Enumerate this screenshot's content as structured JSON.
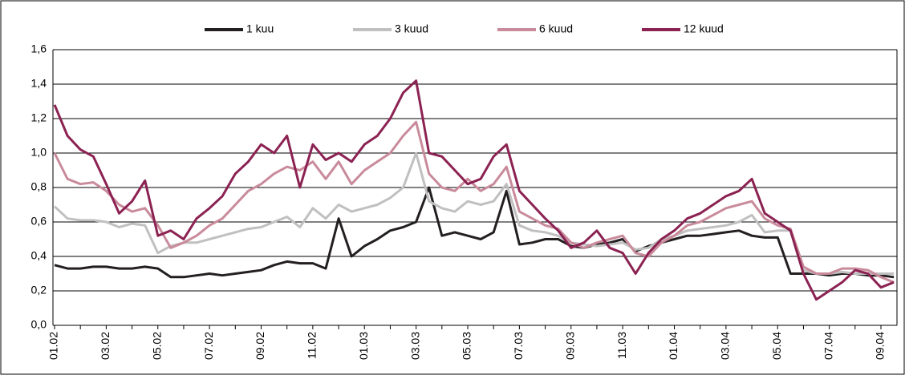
{
  "chart_data": {
    "type": "line",
    "categories": [
      "01.02",
      null,
      null,
      null,
      "03.02",
      null,
      null,
      null,
      "05.02",
      null,
      null,
      null,
      "07.02",
      null,
      null,
      null,
      "09.02",
      null,
      null,
      null,
      "11.02",
      null,
      null,
      null,
      "01.03",
      null,
      null,
      null,
      "03.03",
      null,
      null,
      null,
      "05.03",
      null,
      null,
      null,
      "07.03",
      null,
      null,
      null,
      "09.03",
      null,
      null,
      null,
      "11.03",
      null,
      null,
      null,
      "01.04",
      null,
      null,
      null,
      "03.04",
      null,
      null,
      null,
      "05.04",
      null,
      null,
      null,
      "07.04",
      null,
      null,
      null,
      "09.04",
      null
    ],
    "series": [
      {
        "name": "1 kuu",
        "color": "#231f20",
        "values": [
          0.35,
          0.33,
          0.33,
          0.34,
          0.34,
          0.33,
          0.33,
          0.34,
          0.33,
          0.28,
          0.28,
          0.29,
          0.3,
          0.29,
          0.3,
          0.31,
          0.32,
          0.35,
          0.37,
          0.36,
          0.36,
          0.33,
          0.62,
          0.4,
          0.46,
          0.5,
          0.55,
          0.57,
          0.6,
          0.8,
          0.52,
          0.54,
          0.52,
          0.5,
          0.54,
          0.78,
          0.47,
          0.48,
          0.5,
          0.5,
          0.46,
          0.45,
          0.47,
          0.48,
          0.5,
          0.43,
          0.46,
          0.48,
          0.5,
          0.52,
          0.52,
          0.53,
          0.54,
          0.55,
          0.52,
          0.51,
          0.51,
          0.3,
          0.3,
          0.3,
          0.29,
          0.3,
          0.3,
          0.29,
          0.29,
          0.28
        ]
      },
      {
        "name": "3 kuud",
        "color": "#c0c0c0",
        "values": [
          0.69,
          0.62,
          0.61,
          0.61,
          0.6,
          0.57,
          0.59,
          0.58,
          0.42,
          0.46,
          0.48,
          0.48,
          0.5,
          0.52,
          0.54,
          0.56,
          0.57,
          0.6,
          0.63,
          0.57,
          0.68,
          0.62,
          0.7,
          0.66,
          0.68,
          0.7,
          0.74,
          0.8,
          1.0,
          0.72,
          0.68,
          0.66,
          0.72,
          0.7,
          0.72,
          0.82,
          0.58,
          0.55,
          0.54,
          0.52,
          0.48,
          0.47,
          0.46,
          0.47,
          0.48,
          0.44,
          0.45,
          0.5,
          0.52,
          0.55,
          0.56,
          0.57,
          0.58,
          0.6,
          0.64,
          0.54,
          0.55,
          0.55,
          0.32,
          0.3,
          0.3,
          0.31,
          0.3,
          0.3,
          0.3,
          0.3
        ]
      },
      {
        "name": "6 kuud",
        "color": "#c98b9b",
        "values": [
          1.0,
          0.85,
          0.82,
          0.83,
          0.78,
          0.7,
          0.66,
          0.68,
          0.58,
          0.45,
          0.48,
          0.52,
          0.58,
          0.62,
          0.7,
          0.78,
          0.82,
          0.88,
          0.92,
          0.9,
          0.95,
          0.85,
          0.95,
          0.82,
          0.9,
          0.95,
          1.0,
          1.1,
          1.18,
          0.88,
          0.8,
          0.78,
          0.85,
          0.78,
          0.82,
          0.92,
          0.66,
          0.62,
          0.58,
          0.56,
          0.48,
          0.45,
          0.48,
          0.5,
          0.52,
          0.42,
          0.4,
          0.48,
          0.52,
          0.58,
          0.6,
          0.64,
          0.68,
          0.7,
          0.72,
          0.62,
          0.58,
          0.56,
          0.34,
          0.3,
          0.3,
          0.33,
          0.33,
          0.32,
          0.28,
          0.25
        ]
      },
      {
        "name": "12 kuud",
        "color": "#8b2252",
        "values": [
          1.28,
          1.1,
          1.02,
          0.98,
          0.82,
          0.65,
          0.72,
          0.84,
          0.52,
          0.55,
          0.5,
          0.62,
          0.68,
          0.75,
          0.88,
          0.95,
          1.05,
          1.0,
          1.1,
          0.8,
          1.05,
          0.96,
          1.0,
          0.95,
          1.05,
          1.1,
          1.2,
          1.35,
          1.42,
          1.0,
          0.98,
          0.9,
          0.82,
          0.85,
          0.98,
          1.05,
          0.78,
          0.7,
          0.62,
          0.55,
          0.45,
          0.48,
          0.55,
          0.45,
          0.42,
          0.3,
          0.42,
          0.5,
          0.55,
          0.62,
          0.65,
          0.7,
          0.75,
          0.78,
          0.85,
          0.65,
          0.6,
          0.55,
          0.3,
          0.15,
          0.2,
          0.25,
          0.32,
          0.3,
          0.22,
          0.25
        ]
      }
    ],
    "ylim": [
      0,
      1.6
    ],
    "yticks": [
      {
        "value": 0,
        "label": "0,0"
      },
      {
        "value": 0.2,
        "label": "0,2"
      },
      {
        "value": 0.4,
        "label": "0,4"
      },
      {
        "value": 0.6,
        "label": "0,6"
      },
      {
        "value": 0.8,
        "label": "0,8"
      },
      {
        "value": 1.0,
        "label": "1,0"
      },
      {
        "value": 1.2,
        "label": "1,2"
      },
      {
        "value": 1.4,
        "label": "1,4"
      },
      {
        "value": 1.6,
        "label": "1,6"
      }
    ],
    "grid": true,
    "legend": "top"
  }
}
